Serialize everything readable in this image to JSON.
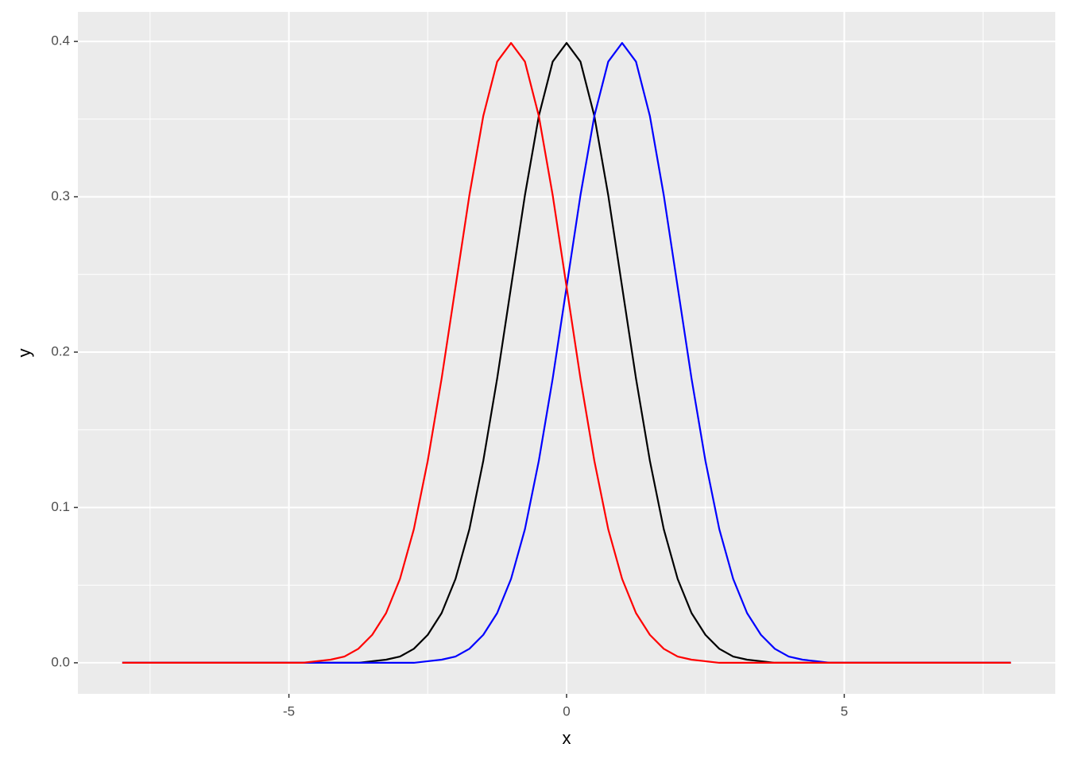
{
  "chart_data": {
    "type": "line",
    "x": [
      -8,
      -7.75,
      -7.5,
      -7.25,
      -7,
      -6.75,
      -6.5,
      -6.25,
      -6,
      -5.75,
      -5.5,
      -5.25,
      -5,
      -4.75,
      -4.5,
      -4.25,
      -4,
      -3.75,
      -3.5,
      -3.25,
      -3,
      -2.75,
      -2.5,
      -2.25,
      -2,
      -1.75,
      -1.5,
      -1.25,
      -1,
      -0.75,
      -0.5,
      -0.25,
      0,
      0.25,
      0.5,
      0.75,
      1,
      1.25,
      1.5,
      1.75,
      2,
      2.25,
      2.5,
      2.75,
      3,
      3.25,
      3.5,
      3.75,
      4,
      4.25,
      4.5,
      4.75,
      5,
      5.25,
      5.5,
      5.75,
      6,
      6.25,
      6.5,
      6.75,
      7,
      7.25,
      7.5,
      7.75,
      8
    ],
    "series": [
      {
        "color": "#000000",
        "values": [
          0,
          0,
          0,
          0,
          0,
          0,
          0,
          0,
          0,
          0,
          0,
          0,
          0,
          0,
          0,
          0,
          0,
          0,
          0.001,
          0.002,
          0.004,
          0.009,
          0.018,
          0.032,
          0.054,
          0.086,
          0.13,
          0.183,
          0.242,
          0.301,
          0.352,
          0.387,
          0.399,
          0.387,
          0.352,
          0.301,
          0.242,
          0.183,
          0.13,
          0.086,
          0.054,
          0.032,
          0.018,
          0.009,
          0.004,
          0.002,
          0.001,
          0,
          0,
          0,
          0,
          0,
          0,
          0,
          0,
          0,
          0,
          0,
          0,
          0,
          0,
          0,
          0,
          0,
          0
        ]
      },
      {
        "color": "#0000ff",
        "values": [
          0,
          0,
          0,
          0,
          0,
          0,
          0,
          0,
          0,
          0,
          0,
          0,
          0,
          0,
          0,
          0,
          0,
          0,
          0,
          0,
          0,
          0,
          0.001,
          0.002,
          0.004,
          0.009,
          0.018,
          0.032,
          0.054,
          0.086,
          0.13,
          0.183,
          0.242,
          0.301,
          0.352,
          0.387,
          0.399,
          0.387,
          0.352,
          0.301,
          0.242,
          0.183,
          0.13,
          0.086,
          0.054,
          0.032,
          0.018,
          0.009,
          0.004,
          0.002,
          0.001,
          0,
          0,
          0,
          0,
          0,
          0,
          0,
          0,
          0,
          0,
          0,
          0,
          0,
          0
        ]
      },
      {
        "color": "#ff0000",
        "values": [
          0,
          0,
          0,
          0,
          0,
          0,
          0,
          0,
          0,
          0,
          0,
          0,
          0,
          0,
          0.001,
          0.002,
          0.004,
          0.009,
          0.018,
          0.032,
          0.054,
          0.086,
          0.13,
          0.183,
          0.242,
          0.301,
          0.352,
          0.387,
          0.399,
          0.387,
          0.352,
          0.301,
          0.242,
          0.183,
          0.13,
          0.086,
          0.054,
          0.032,
          0.018,
          0.009,
          0.004,
          0.002,
          0.001,
          0,
          0,
          0,
          0,
          0,
          0,
          0,
          0,
          0,
          0,
          0,
          0,
          0,
          0,
          0,
          0,
          0,
          0,
          0,
          0,
          0,
          0
        ]
      }
    ],
    "x_label": "x",
    "y_label": "y",
    "xlim": [
      -8.8,
      8.8
    ],
    "xticks": [
      -5,
      0,
      5
    ],
    "ylim": [
      -0.02,
      0.419
    ],
    "yticks": [
      {
        "value": 0,
        "label": "0.0"
      },
      0.1,
      0.2,
      0.3,
      0.4
    ],
    "grid": true
  }
}
